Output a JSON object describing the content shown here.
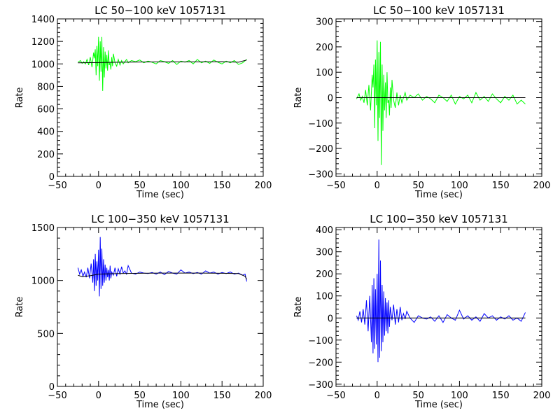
{
  "chart_data": [
    {
      "type": "line",
      "title": "LC 50−100 keV  1057131",
      "xlabel": "Time (sec)",
      "ylabel": "Rate",
      "xlim": [
        -50,
        200
      ],
      "ylim": [
        0,
        1400
      ],
      "xticks": [
        -50,
        0,
        50,
        100,
        150,
        200
      ],
      "xtick_labels": [
        "−50",
        "0",
        "50",
        "100",
        "150",
        "200"
      ],
      "yticks": [
        0,
        200,
        400,
        600,
        800,
        1000,
        1200,
        1400
      ],
      "ytick_labels": [
        "0",
        "200",
        "400",
        "600",
        "800",
        "1000",
        "1200",
        "1400"
      ],
      "series": [
        {
          "color": "#00ff00",
          "x": [
            -25,
            -22,
            -20,
            -18,
            -16,
            -14,
            -12,
            -10,
            -8,
            -6,
            -5,
            -4,
            -3,
            -2,
            -1,
            0,
            1,
            2,
            3,
            4,
            5,
            6,
            7,
            8,
            9,
            10,
            11,
            12,
            13,
            14,
            15,
            16,
            17,
            18,
            20,
            22,
            24,
            26,
            28,
            30,
            32,
            34,
            36,
            40,
            45,
            50,
            55,
            60,
            65,
            70,
            75,
            80,
            85,
            90,
            95,
            100,
            105,
            110,
            115,
            120,
            125,
            130,
            135,
            140,
            145,
            150,
            155,
            160,
            165,
            170,
            175,
            180
          ],
          "y": [
            1015,
            1030,
            1005,
            1020,
            1000,
            1040,
            990,
            1060,
            970,
            1100,
            1050,
            1130,
            900,
            1160,
            980,
            1240,
            850,
            1200,
            930,
            1240,
            760,
            1150,
            880,
            1110,
            960,
            1080,
            940,
            1120,
            990,
            1010,
            950,
            1060,
            980,
            1090,
            1010,
            980,
            1040,
            990,
            1030,
            1000,
            1020,
            1040,
            1010,
            1030,
            1020,
            1035,
            1010,
            1025,
            1015,
            1000,
            1030,
            1020,
            1005,
            1030,
            995,
            1025,
            1015,
            1030,
            1000,
            1040,
            1010,
            1025,
            1005,
            1035,
            1015,
            1000,
            1025,
            1010,
            1030,
            995,
            1010,
            1040
          ]
        },
        {
          "color": "#000000",
          "x": [
            -25,
            0,
            25,
            50,
            75,
            100,
            125,
            150,
            170,
            180
          ],
          "y": [
            1010,
            1012,
            1015,
            1017,
            1018,
            1018,
            1018,
            1020,
            1015,
            1035
          ]
        }
      ]
    },
    {
      "type": "line",
      "title": "LC 50−100 keV  1057131",
      "xlabel": "Time (sec)",
      "ylabel": "Rate",
      "xlim": [
        -50,
        200
      ],
      "ylim": [
        -310,
        310
      ],
      "xticks": [
        -50,
        0,
        50,
        100,
        150,
        200
      ],
      "xtick_labels": [
        "−50",
        "0",
        "50",
        "100",
        "150",
        "200"
      ],
      "yticks": [
        -300,
        -200,
        -100,
        0,
        100,
        200,
        300
      ],
      "ytick_labels": [
        "−300",
        "−200",
        "−100",
        "0",
        "100",
        "200",
        "300"
      ],
      "series": [
        {
          "color": "#00ff00",
          "x": [
            -25,
            -22,
            -20,
            -18,
            -16,
            -14,
            -12,
            -10,
            -8,
            -6,
            -5,
            -4,
            -3,
            -2,
            -1,
            0,
            1,
            2,
            3,
            4,
            5,
            6,
            7,
            8,
            9,
            10,
            11,
            12,
            13,
            14,
            15,
            16,
            17,
            18,
            20,
            22,
            24,
            26,
            28,
            30,
            32,
            34,
            36,
            40,
            45,
            50,
            55,
            60,
            65,
            70,
            75,
            80,
            85,
            90,
            95,
            100,
            105,
            110,
            115,
            120,
            125,
            130,
            135,
            140,
            145,
            150,
            155,
            160,
            165,
            170,
            175,
            180
          ],
          "y": [
            -5,
            15,
            -10,
            5,
            -20,
            30,
            -30,
            50,
            -50,
            90,
            40,
            130,
            -120,
            150,
            -30,
            225,
            -170,
            180,
            -80,
            220,
            -265,
            130,
            -130,
            90,
            -50,
            60,
            -80,
            100,
            -20,
            -10,
            -70,
            40,
            -40,
            70,
            -10,
            -40,
            20,
            -30,
            10,
            -20,
            0,
            20,
            -10,
            10,
            0,
            15,
            -10,
            5,
            -5,
            -20,
            10,
            0,
            -15,
            10,
            -25,
            5,
            -5,
            10,
            -20,
            20,
            -10,
            5,
            -15,
            15,
            -5,
            -20,
            5,
            -10,
            10,
            -25,
            -10,
            -25
          ]
        },
        {
          "color": "#000000",
          "x": [
            -25,
            180
          ],
          "y": [
            0,
            0
          ]
        }
      ]
    },
    {
      "type": "line",
      "title": "LC 100−350 keV  1057131",
      "xlabel": "Time (sec)",
      "ylabel": "Rate",
      "xlim": [
        -50,
        200
      ],
      "ylim": [
        0,
        1500
      ],
      "xticks": [
        -50,
        0,
        50,
        100,
        150,
        200
      ],
      "xtick_labels": [
        "−50",
        "0",
        "50",
        "100",
        "150",
        "200"
      ],
      "yticks": [
        0,
        500,
        1000,
        1500
      ],
      "ytick_labels": [
        "0",
        "500",
        "1000",
        "1500"
      ],
      "series": [
        {
          "color": "#0000ff",
          "x": [
            -25,
            -23,
            -21,
            -19,
            -17,
            -15,
            -13,
            -11,
            -9,
            -7,
            -6,
            -5,
            -4,
            -3,
            -2,
            -1,
            0,
            1,
            2,
            3,
            4,
            5,
            6,
            7,
            8,
            9,
            10,
            11,
            12,
            13,
            14,
            15,
            16,
            18,
            20,
            22,
            24,
            26,
            28,
            30,
            32,
            34,
            36,
            40,
            45,
            50,
            55,
            60,
            65,
            70,
            75,
            80,
            85,
            90,
            95,
            100,
            105,
            110,
            115,
            120,
            125,
            130,
            135,
            140,
            145,
            150,
            155,
            160,
            165,
            170,
            175,
            178,
            180
          ],
          "y": [
            1120,
            1060,
            1100,
            1040,
            1080,
            1030,
            1120,
            1020,
            1160,
            980,
            1200,
            900,
            1250,
            950,
            1180,
            1000,
            1290,
            850,
            1410,
            920,
            1300,
            950,
            1200,
            980,
            1150,
            1000,
            1120,
            1030,
            1100,
            1000,
            1140,
            1020,
            1080,
            1050,
            1120,
            1040,
            1110,
            1060,
            1130,
            1070,
            1090,
            1060,
            1140,
            1070,
            1060,
            1080,
            1070,
            1065,
            1075,
            1060,
            1080,
            1055,
            1085,
            1070,
            1060,
            1100,
            1070,
            1080,
            1065,
            1075,
            1060,
            1090,
            1070,
            1080,
            1060,
            1075,
            1065,
            1080,
            1060,
            1070,
            1050,
            1060,
            990
          ]
        },
        {
          "color": "#000000",
          "x": [
            -25,
            -20,
            -15,
            -10,
            0,
            25,
            50,
            75,
            100,
            125,
            150,
            170,
            178,
            180
          ],
          "y": [
            1050,
            1035,
            1040,
            1045,
            1060,
            1065,
            1068,
            1070,
            1070,
            1070,
            1068,
            1065,
            1040,
            1010
          ]
        }
      ]
    },
    {
      "type": "line",
      "title": "LC 100−350 keV  1057131",
      "xlabel": "Time (sec)",
      "ylabel": "Rate",
      "xlim": [
        -50,
        200
      ],
      "ylim": [
        -310,
        410
      ],
      "xticks": [
        -50,
        0,
        50,
        100,
        150,
        200
      ],
      "xtick_labels": [
        "−50",
        "0",
        "50",
        "100",
        "150",
        "200"
      ],
      "yticks": [
        -300,
        -200,
        -100,
        0,
        100,
        200,
        300,
        400
      ],
      "ytick_labels": [
        "−300",
        "−200",
        "−100",
        "0",
        "100",
        "200",
        "300",
        "400"
      ],
      "series": [
        {
          "color": "#0000ff",
          "x": [
            -25,
            -23,
            -21,
            -19,
            -17,
            -15,
            -13,
            -11,
            -9,
            -7,
            -6,
            -5,
            -4,
            -3,
            -2,
            -1,
            0,
            1,
            2,
            3,
            4,
            5,
            6,
            7,
            8,
            9,
            10,
            11,
            12,
            13,
            14,
            15,
            16,
            18,
            20,
            22,
            24,
            26,
            28,
            30,
            32,
            34,
            36,
            40,
            45,
            50,
            55,
            60,
            65,
            70,
            75,
            80,
            85,
            90,
            95,
            100,
            105,
            110,
            115,
            120,
            125,
            130,
            135,
            140,
            145,
            150,
            155,
            160,
            165,
            170,
            175,
            180
          ],
          "y": [
            10,
            -10,
            30,
            -20,
            40,
            -30,
            80,
            -60,
            100,
            -110,
            150,
            -160,
            180,
            -140,
            130,
            -120,
            200,
            -200,
            355,
            -180,
            260,
            -150,
            150,
            -110,
            120,
            -80,
            90,
            -60,
            70,
            -70,
            80,
            -40,
            50,
            -10,
            60,
            -30,
            40,
            -20,
            50,
            -10,
            20,
            -5,
            30,
            0,
            -20,
            10,
            0,
            -5,
            5,
            -15,
            10,
            -20,
            15,
            0,
            -10,
            35,
            -5,
            10,
            -10,
            5,
            -15,
            20,
            0,
            10,
            -10,
            5,
            -5,
            10,
            -10,
            0,
            -15,
            25
          ]
        },
        {
          "color": "#000000",
          "x": [
            -25,
            180
          ],
          "y": [
            0,
            0
          ]
        }
      ]
    }
  ]
}
